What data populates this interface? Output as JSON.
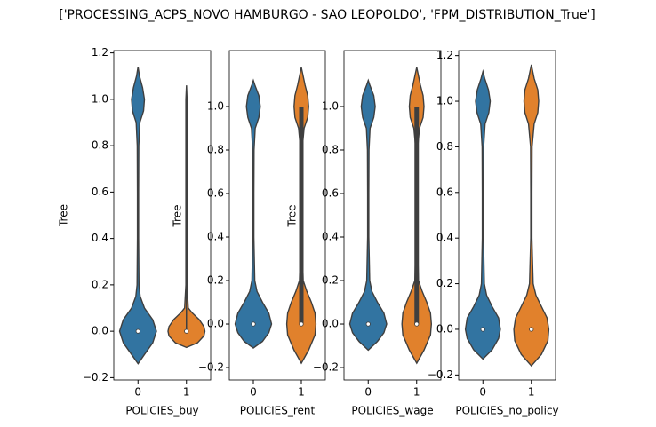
{
  "title": "['PROCESSING_ACPS_NOVO HAMBURGO - SAO LEOPOLDO', 'FPM_DISTRIBUTION_True']",
  "chart_data": [
    {
      "type": "violin",
      "xlabel": "POLICIES_buy",
      "ylabel": "Tree",
      "categories": [
        "0",
        "1"
      ],
      "ylim": [
        -0.21,
        1.21
      ],
      "yticks": [
        {
          "value": -0.2,
          "label": "−0.2"
        },
        {
          "value": 0,
          "label": "0.0"
        },
        0.2,
        0.4,
        0.6,
        0.8,
        {
          "value": 1,
          "label": "1.0"
        },
        1.2
      ],
      "violins": [
        {
          "color": "#3274a1",
          "median": 0,
          "density_y": [
            -0.14,
            -0.1,
            -0.05,
            0,
            0.05,
            0.1,
            0.15,
            0.2,
            0.4,
            0.6,
            0.8,
            0.9,
            0.95,
            1,
            1.05,
            1.1,
            1.14
          ],
          "density": [
            0,
            0.35,
            0.8,
            1,
            0.8,
            0.35,
            0.12,
            0.05,
            0.03,
            0.03,
            0.04,
            0.1,
            0.3,
            0.35,
            0.25,
            0.08,
            0
          ]
        },
        {
          "color": "#e1812c",
          "median": 0,
          "whisker": [
            0,
            1
          ],
          "density_y": [
            -0.07,
            -0.05,
            -0.02,
            0,
            0.02,
            0.05,
            0.08,
            0.1,
            0.2,
            1,
            1.06
          ],
          "density": [
            0,
            0.6,
            0.95,
            1,
            0.95,
            0.7,
            0.3,
            0.1,
            0.03,
            0.03,
            0
          ]
        }
      ]
    },
    {
      "type": "violin",
      "xlabel": "POLICIES_rent",
      "ylabel": "Tree",
      "categories": [
        "0",
        "1"
      ],
      "ylim": [
        -0.257,
        1.257
      ],
      "yticks": [
        {
          "value": -0.2,
          "label": "−0.2"
        },
        {
          "value": 0,
          "label": "0.0"
        },
        0.2,
        0.4,
        0.6,
        0.8,
        {
          "value": 1,
          "label": "1.0"
        }
      ],
      "violins": [
        {
          "color": "#3274a1",
          "median": 0,
          "density_y": [
            -0.11,
            -0.08,
            -0.04,
            0,
            0.05,
            0.1,
            0.15,
            0.2,
            0.4,
            0.6,
            0.8,
            0.9,
            0.95,
            1,
            1.05,
            1.1,
            1.12
          ],
          "density": [
            0,
            0.5,
            0.85,
            1,
            0.85,
            0.5,
            0.2,
            0.08,
            0.03,
            0.03,
            0.04,
            0.1,
            0.3,
            0.38,
            0.3,
            0.08,
            0
          ]
        },
        {
          "color": "#e1812c",
          "median": 0,
          "quartiles": [
            0,
            1
          ],
          "whisker": [
            0,
            1
          ],
          "density_y": [
            -0.18,
            -0.12,
            -0.05,
            0,
            0.05,
            0.1,
            0.15,
            0.2,
            0.4,
            0.6,
            0.8,
            0.9,
            0.95,
            1,
            1.05,
            1.1,
            1.18
          ],
          "density": [
            0,
            0.4,
            0.75,
            0.8,
            0.75,
            0.55,
            0.3,
            0.1,
            0.03,
            0.03,
            0.04,
            0.15,
            0.35,
            0.4,
            0.35,
            0.2,
            0
          ]
        }
      ]
    },
    {
      "type": "violin",
      "xlabel": "POLICIES_wage",
      "ylabel": "Tree",
      "categories": [
        "0",
        "1"
      ],
      "ylim": [
        -0.257,
        1.257
      ],
      "yticks": [
        {
          "value": -0.2,
          "label": "−0.2"
        },
        {
          "value": 0,
          "label": "0.0"
        },
        0.2,
        0.4,
        0.6,
        0.8,
        {
          "value": 1,
          "label": "1.0"
        }
      ],
      "violins": [
        {
          "color": "#3274a1",
          "median": 0,
          "density_y": [
            -0.12,
            -0.08,
            -0.04,
            0,
            0.05,
            0.1,
            0.15,
            0.2,
            0.4,
            0.6,
            0.8,
            0.9,
            0.95,
            1,
            1.05,
            1.1,
            1.12
          ],
          "density": [
            0,
            0.5,
            0.85,
            1,
            0.85,
            0.5,
            0.2,
            0.08,
            0.03,
            0.03,
            0.04,
            0.1,
            0.3,
            0.38,
            0.3,
            0.08,
            0
          ]
        },
        {
          "color": "#e1812c",
          "median": 0,
          "quartiles": [
            0,
            1
          ],
          "whisker": [
            0,
            1
          ],
          "density_y": [
            -0.18,
            -0.12,
            -0.05,
            0,
            0.05,
            0.1,
            0.15,
            0.2,
            0.4,
            0.6,
            0.8,
            0.9,
            0.95,
            1,
            1.05,
            1.1,
            1.18
          ],
          "density": [
            0,
            0.4,
            0.75,
            0.8,
            0.75,
            0.55,
            0.3,
            0.1,
            0.03,
            0.03,
            0.04,
            0.15,
            0.35,
            0.4,
            0.35,
            0.2,
            0
          ]
        }
      ]
    },
    {
      "type": "violin",
      "xlabel": "POLICIES_no_policy",
      "categories": [
        "0",
        "1"
      ],
      "ylim": [
        -0.222,
        1.222
      ],
      "yticks": [
        {
          "value": -0.2,
          "label": "−0.2"
        },
        {
          "value": 0,
          "label": "0.0"
        },
        0.2,
        0.4,
        0.6,
        0.8,
        {
          "value": 1,
          "label": "1.0"
        },
        1.2
      ],
      "violins": [
        {
          "color": "#3274a1",
          "median": 0,
          "density_y": [
            -0.13,
            -0.09,
            -0.04,
            0,
            0.05,
            0.1,
            0.15,
            0.2,
            0.4,
            0.6,
            0.8,
            0.9,
            0.95,
            1,
            1.05,
            1.1,
            1.13
          ],
          "density": [
            0,
            0.5,
            0.85,
            0.95,
            0.85,
            0.5,
            0.2,
            0.08,
            0.03,
            0.03,
            0.04,
            0.12,
            0.32,
            0.4,
            0.3,
            0.1,
            0
          ]
        },
        {
          "color": "#e1812c",
          "median": 0,
          "density_y": [
            -0.16,
            -0.11,
            -0.05,
            0,
            0.05,
            0.1,
            0.15,
            0.2,
            0.4,
            0.6,
            0.8,
            0.9,
            0.95,
            1,
            1.05,
            1.1,
            1.16
          ],
          "density": [
            0,
            0.55,
            0.9,
            0.95,
            0.85,
            0.55,
            0.25,
            0.1,
            0.03,
            0.03,
            0.04,
            0.15,
            0.35,
            0.4,
            0.35,
            0.15,
            0
          ]
        }
      ]
    }
  ]
}
